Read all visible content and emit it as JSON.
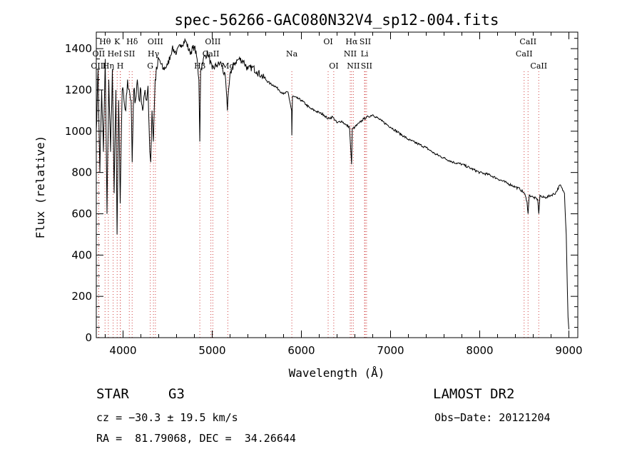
{
  "chart_data": {
    "type": "line",
    "title": "spec-56266-GAC080N32V4_sp12-004.fits",
    "xlabel": "Wavelength (Å)",
    "ylabel": "Flux (relative)",
    "xlim": [
      3700,
      9100
    ],
    "ylim": [
      0,
      1480
    ],
    "xticks": [
      4000,
      5000,
      6000,
      7000,
      8000,
      9000
    ],
    "yticks": [
      0,
      200,
      400,
      600,
      800,
      1000,
      1200,
      1400
    ],
    "grid": false,
    "series": [
      {
        "name": "spectrum",
        "x": [
          3700,
          3720,
          3740,
          3760,
          3780,
          3800,
          3820,
          3840,
          3860,
          3880,
          3900,
          3920,
          3933,
          3950,
          3968,
          3990,
          4010,
          4030,
          4050,
          4070,
          4090,
          4102,
          4120,
          4140,
          4160,
          4180,
          4200,
          4220,
          4240,
          4260,
          4280,
          4300,
          4310,
          4325,
          4340,
          4360,
          4380,
          4400,
          4450,
          4500,
          4550,
          4600,
          4650,
          4700,
          4750,
          4800,
          4830,
          4850,
          4861,
          4870,
          4900,
          4950,
          5000,
          5050,
          5100,
          5150,
          5170,
          5183,
          5200,
          5250,
          5300,
          5350,
          5400,
          5450,
          5500,
          5550,
          5600,
          5650,
          5700,
          5750,
          5800,
          5850,
          5890,
          5893,
          5900,
          5950,
          6000,
          6050,
          6100,
          6150,
          6200,
          6250,
          6300,
          6350,
          6400,
          6450,
          6500,
          6540,
          6555,
          6563,
          6570,
          6600,
          6650,
          6700,
          6750,
          6800,
          6900,
          7000,
          7100,
          7200,
          7300,
          7400,
          7500,
          7600,
          7700,
          7800,
          7900,
          8000,
          8100,
          8200,
          8300,
          8400,
          8450,
          8500,
          8530,
          8542,
          8555,
          8600,
          8650,
          8662,
          8675,
          8700,
          8750,
          8800,
          8850,
          8900,
          8950,
          8970,
          8990,
          9000
        ],
        "values": [
          1000,
          1300,
          800,
          1200,
          900,
          1350,
          600,
          1250,
          900,
          1300,
          700,
          1200,
          500,
          1150,
          650,
          1200,
          1150,
          1100,
          1250,
          1200,
          1150,
          850,
          1200,
          1150,
          1250,
          1150,
          1200,
          1100,
          1180,
          1150,
          1220,
          900,
          850,
          1100,
          950,
          1250,
          1300,
          1350,
          1300,
          1320,
          1400,
          1380,
          1420,
          1440,
          1380,
          1410,
          1350,
          1250,
          950,
          1300,
          1350,
          1380,
          1300,
          1320,
          1330,
          1250,
          1100,
          1200,
          1280,
          1330,
          1350,
          1340,
          1300,
          1310,
          1290,
          1270,
          1250,
          1230,
          1220,
          1200,
          1180,
          1190,
          1100,
          980,
          1170,
          1160,
          1150,
          1130,
          1110,
          1100,
          1090,
          1080,
          1060,
          1070,
          1040,
          1050,
          1030,
          1020,
          900,
          840,
          1010,
          1020,
          1040,
          1060,
          1070,
          1080,
          1050,
          1020,
          990,
          960,
          940,
          920,
          890,
          870,
          850,
          840,
          820,
          800,
          790,
          770,
          750,
          730,
          720,
          700,
          660,
          600,
          690,
          680,
          670,
          600,
          690,
          680,
          680,
          690,
          700,
          740,
          700,
          500,
          100,
          40
        ]
      }
    ],
    "spectral_lines": [
      {
        "name": "Hθ",
        "x": 3798,
        "row": 1
      },
      {
        "name": "K",
        "x": 3934,
        "row": 1
      },
      {
        "name": "Hδ",
        "x": 4102,
        "row": 1
      },
      {
        "name": "OIII",
        "x": 4363,
        "row": 1
      },
      {
        "name": "OIII",
        "x": 5007,
        "row": 1
      },
      {
        "name": "OI",
        "x": 6300,
        "row": 1
      },
      {
        "name": "Hα",
        "x": 6563,
        "row": 1
      },
      {
        "name": "SII",
        "x": 6716,
        "row": 1
      },
      {
        "name": "CaII",
        "x": 8542,
        "row": 1
      },
      {
        "name": "OII",
        "x": 3727,
        "row": 2
      },
      {
        "name": "He",
        "x": 3889,
        "row": 2
      },
      {
        "name": "I",
        "x": 3970,
        "row": 2
      },
      {
        "name": "SII",
        "x": 4070,
        "row": 2
      },
      {
        "name": "Hγ",
        "x": 4341,
        "row": 2
      },
      {
        "name": "CaII",
        "x": 4985,
        "row": 2
      },
      {
        "name": "Na",
        "x": 5893,
        "row": 2
      },
      {
        "name": "NII",
        "x": 6548,
        "row": 2
      },
      {
        "name": "Li",
        "x": 6708,
        "row": 2
      },
      {
        "name": "CaII",
        "x": 8498,
        "row": 2
      },
      {
        "name": "OIII",
        "x": 3727,
        "row": 3
      },
      {
        "name": "Hη",
        "x": 3835,
        "row": 3
      },
      {
        "name": "H",
        "x": 3968,
        "row": 3
      },
      {
        "name": "G",
        "x": 4305,
        "row": 3
      },
      {
        "name": "Hβ",
        "x": 4861,
        "row": 3
      },
      {
        "name": "Mg",
        "x": 5175,
        "row": 3
      },
      {
        "name": "OI",
        "x": 6363,
        "row": 3
      },
      {
        "name": "NII",
        "x": 6583,
        "row": 3
      },
      {
        "name": "SII",
        "x": 6731,
        "row": 3
      },
      {
        "name": "CaII",
        "x": 8662,
        "row": 3
      }
    ]
  },
  "info": {
    "object_class": "STAR",
    "subclass": "G3",
    "survey": "LAMOST DR2",
    "velocity": "cz = −30.3 ± 19.5 km/s",
    "obs_date": "Obs−Date: 20121204",
    "coords": "RA =  81.79068, DEC =  34.26644"
  }
}
